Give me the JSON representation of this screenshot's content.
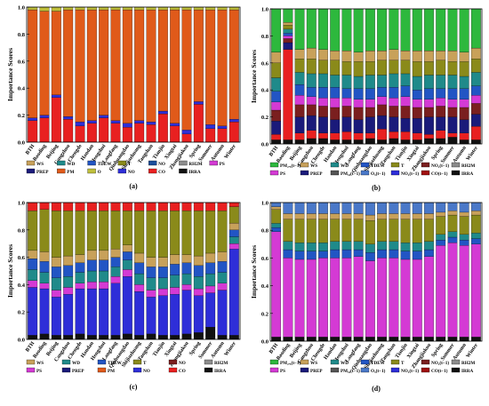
{
  "palette": {
    "PM25_lag": "#2db83d",
    "WS": "#c8a15a",
    "WD": "#1f8a8a",
    "TDEW": "#2255c4",
    "T": "#8a8a1a",
    "NO2_lag": "#7a1f1f",
    "RH2M": "#8c8c8c",
    "PS": "#d43ad4",
    "PREP": "#1a1a7a",
    "PM10": "#e05a1a",
    "O3_lag": "#4a78c8",
    "NO2": "#2e2ed8",
    "CO_lag": "#a01010",
    "IRRA": "#101010",
    "O3": "#bfbf3a",
    "NO": "#1b4e9b",
    "F": "#d8d820",
    "CO": "#e82020",
    "PM10_lag": "#555555"
  },
  "chart_data": [
    {
      "type": "bar",
      "panel": "(a)",
      "ylabel": "Importance Scores",
      "ylim": [
        0,
        1.0
      ],
      "yticks": [
        "0.0",
        "0.2",
        "0.4",
        "0.6",
        "0.8",
        "1.0"
      ],
      "categories": [
        "BTH",
        "Baoding",
        "Beijing",
        "Cangzhou",
        "Chengde",
        "Handan",
        "Hengshui",
        "Langfang",
        "Qinhuangdao",
        "Shijiazhuang",
        "Tangshan",
        "Tianjin",
        "Xingtai",
        "Zhangjiakou",
        "Spring",
        "Summer",
        "Autumn",
        "Winter"
      ],
      "series": [
        {
          "key": "CO",
          "values": [
            0.16,
            0.18,
            0.33,
            0.17,
            0.12,
            0.14,
            0.18,
            0.14,
            0.11,
            0.14,
            0.13,
            0.21,
            0.12,
            0.06,
            0.28,
            0.1,
            0.1,
            0.15
          ]
        },
        {
          "key": "NO2",
          "values": [
            0.02,
            0.02,
            0.02,
            0.02,
            0.03,
            0.02,
            0.02,
            0.02,
            0.03,
            0.02,
            0.02,
            0.02,
            0.02,
            0.03,
            0.02,
            0.03,
            0.02,
            0.02
          ]
        },
        {
          "key": "PM10",
          "values": [
            0.8,
            0.77,
            0.62,
            0.79,
            0.83,
            0.82,
            0.78,
            0.82,
            0.84,
            0.82,
            0.83,
            0.75,
            0.84,
            0.89,
            0.68,
            0.85,
            0.86,
            0.81
          ]
        },
        {
          "key": "O3",
          "values": [
            0.02,
            0.03,
            0.03,
            0.02,
            0.02,
            0.02,
            0.02,
            0.02,
            0.02,
            0.02,
            0.02,
            0.02,
            0.02,
            0.02,
            0.02,
            0.02,
            0.02,
            0.02
          ]
        }
      ],
      "legend": [
        {
          "label": "WS",
          "key": "WS"
        },
        {
          "label": "WD",
          "key": "WD"
        },
        {
          "label": "TDEW",
          "key": "TDEW"
        },
        {
          "label": "T",
          "key": "T"
        },
        {
          "label": "NO",
          "key": "NO"
        },
        {
          "label": "RH2M",
          "key": "RH2M"
        },
        {
          "label": "PS",
          "key": "PS"
        },
        {
          "label": "PREP",
          "key": "PREP"
        },
        {
          "label": "PM",
          "key": "PM10"
        },
        {
          "label": "O",
          "key": "O3"
        },
        {
          "label": "NO",
          "key": "NO2"
        },
        {
          "label": "CO",
          "key": "CO"
        },
        {
          "label": "IRRA",
          "key": "IRRA"
        }
      ]
    },
    {
      "type": "bar",
      "panel": "(b)",
      "ylabel": "Importance Scores",
      "ylim": [
        0,
        1.0
      ],
      "yticks": [
        "0.0",
        "0.2",
        "0.4",
        "0.6",
        "0.8",
        "1.0"
      ],
      "categories": [
        "BTH",
        "Baoding",
        "Beijing",
        "Cangzhou",
        "Chengde",
        "Handan",
        "Hengshui",
        "Langfang",
        "Qinhuangdao",
        "Shijiazhuang",
        "Tangshan",
        "Tianjin",
        "Xingtai",
        "Zhangjiakou",
        "Spring",
        "Summer",
        "Autumn",
        "Winter"
      ],
      "series": [
        {
          "key": "IRRA",
          "values": [
            0.03,
            0.03,
            0.03,
            0.04,
            0.04,
            0.03,
            0.03,
            0.03,
            0.04,
            0.03,
            0.04,
            0.03,
            0.03,
            0.04,
            0.04,
            0.05,
            0.03,
            0.03
          ]
        },
        {
          "key": "CO",
          "values": [
            0.04,
            0.67,
            0.05,
            0.06,
            0.04,
            0.05,
            0.06,
            0.05,
            0.04,
            0.08,
            0.05,
            0.06,
            0.05,
            0.03,
            0.06,
            0.03,
            0.05,
            0.1
          ]
        },
        {
          "key": "PREP",
          "values": [
            0.1,
            0.05,
            0.12,
            0.11,
            0.12,
            0.1,
            0.11,
            0.1,
            0.12,
            0.1,
            0.11,
            0.1,
            0.11,
            0.13,
            0.1,
            0.12,
            0.1,
            0.09
          ]
        },
        {
          "key": "NO2_lag",
          "values": [
            0.08,
            0.03,
            0.09,
            0.08,
            0.08,
            0.09,
            0.08,
            0.09,
            0.07,
            0.08,
            0.08,
            0.09,
            0.08,
            0.07,
            0.08,
            0.07,
            0.09,
            0.08
          ]
        },
        {
          "key": "PS",
          "values": [
            0.06,
            0.02,
            0.07,
            0.06,
            0.06,
            0.07,
            0.06,
            0.06,
            0.06,
            0.06,
            0.06,
            0.07,
            0.06,
            0.06,
            0.06,
            0.06,
            0.06,
            0.06
          ]
        },
        {
          "key": "TDEW",
          "values": [
            0.08,
            0.02,
            0.08,
            0.07,
            0.08,
            0.08,
            0.07,
            0.08,
            0.08,
            0.07,
            0.08,
            0.08,
            0.07,
            0.08,
            0.07,
            0.08,
            0.08,
            0.07
          ]
        },
        {
          "key": "WD",
          "values": [
            0.1,
            0.03,
            0.09,
            0.1,
            0.1,
            0.09,
            0.1,
            0.09,
            0.1,
            0.09,
            0.1,
            0.09,
            0.1,
            0.1,
            0.1,
            0.1,
            0.09,
            0.1
          ]
        },
        {
          "key": "T",
          "values": [
            0.11,
            0.03,
            0.1,
            0.11,
            0.1,
            0.11,
            0.1,
            0.11,
            0.1,
            0.11,
            0.1,
            0.1,
            0.11,
            0.1,
            0.11,
            0.1,
            0.11,
            0.1
          ]
        },
        {
          "key": "WS",
          "values": [
            0.08,
            0.02,
            0.07,
            0.08,
            0.08,
            0.07,
            0.08,
            0.07,
            0.08,
            0.07,
            0.08,
            0.07,
            0.08,
            0.08,
            0.07,
            0.08,
            0.07,
            0.08
          ]
        },
        {
          "key": "PM25_lag",
          "values": [
            0.32,
            0.1,
            0.3,
            0.29,
            0.3,
            0.31,
            0.31,
            0.32,
            0.31,
            0.31,
            0.3,
            0.31,
            0.31,
            0.31,
            0.31,
            0.31,
            0.32,
            0.29
          ]
        }
      ],
      "legend": [
        {
          "label": "PM₂.₅(t−1)",
          "key": "PM25_lag"
        },
        {
          "label": "WS",
          "key": "WS"
        },
        {
          "label": "WD",
          "key": "WD"
        },
        {
          "label": "TDEW",
          "key": "TDEW"
        },
        {
          "label": "T",
          "key": "T"
        },
        {
          "label": "NO₂(t−1)",
          "key": "NO2_lag"
        },
        {
          "label": "RH2M",
          "key": "RH2M"
        },
        {
          "label": "PS",
          "key": "PS"
        },
        {
          "label": "PREP",
          "key": "PREP"
        },
        {
          "label": "PM₁₀(t−1)",
          "key": "PM10_lag"
        },
        {
          "label": "O₃(t−1)",
          "key": "O3_lag"
        },
        {
          "label": "NO₂(t−1)",
          "key": "NO2"
        },
        {
          "label": "CO(t−1)",
          "key": "CO_lag"
        },
        {
          "label": "IRRA",
          "key": "IRRA"
        }
      ]
    },
    {
      "type": "bar",
      "panel": "(c)",
      "ylabel": "Importance Scores",
      "ylim": [
        0,
        1.0
      ],
      "yticks": [
        "0.0",
        "0.2",
        "0.4",
        "0.6",
        "0.8",
        "1.0"
      ],
      "categories": [
        "BTH",
        "Baoding",
        "Beijing",
        "Cangzhou",
        "Chengde",
        "Handan",
        "Hengshui",
        "Langfang",
        "Qinhuangdao",
        "Shijiazhuang",
        "Tangshan",
        "Tianjin",
        "Xingtai",
        "Zhangjiakou",
        "Spring",
        "Summer",
        "Autumn",
        "Winter"
      ],
      "series": [
        {
          "key": "IRRA",
          "values": [
            0.03,
            0.04,
            0.03,
            0.03,
            0.04,
            0.03,
            0.03,
            0.03,
            0.04,
            0.03,
            0.04,
            0.03,
            0.03,
            0.04,
            0.05,
            0.09,
            0.03,
            0.03
          ]
        },
        {
          "key": "NO2",
          "values": [
            0.35,
            0.33,
            0.28,
            0.3,
            0.33,
            0.34,
            0.34,
            0.38,
            0.42,
            0.32,
            0.27,
            0.29,
            0.3,
            0.32,
            0.27,
            0.25,
            0.33,
            0.63
          ]
        },
        {
          "key": "PS",
          "values": [
            0.05,
            0.04,
            0.05,
            0.05,
            0.04,
            0.05,
            0.05,
            0.05,
            0.05,
            0.05,
            0.05,
            0.05,
            0.05,
            0.04,
            0.05,
            0.05,
            0.05,
            0.04
          ]
        },
        {
          "key": "WD",
          "values": [
            0.08,
            0.08,
            0.09,
            0.08,
            0.08,
            0.08,
            0.08,
            0.07,
            0.07,
            0.08,
            0.09,
            0.08,
            0.09,
            0.08,
            0.09,
            0.09,
            0.08,
            0.05
          ]
        },
        {
          "key": "TDEW",
          "values": [
            0.08,
            0.08,
            0.08,
            0.08,
            0.07,
            0.08,
            0.08,
            0.07,
            0.06,
            0.08,
            0.08,
            0.08,
            0.08,
            0.08,
            0.08,
            0.08,
            0.08,
            0.05
          ]
        },
        {
          "key": "WS",
          "values": [
            0.06,
            0.07,
            0.07,
            0.07,
            0.06,
            0.07,
            0.07,
            0.06,
            0.05,
            0.07,
            0.07,
            0.07,
            0.07,
            0.06,
            0.07,
            0.07,
            0.07,
            0.05
          ]
        },
        {
          "key": "T",
          "values": [
            0.29,
            0.31,
            0.34,
            0.33,
            0.32,
            0.29,
            0.29,
            0.28,
            0.25,
            0.31,
            0.34,
            0.34,
            0.32,
            0.32,
            0.33,
            0.31,
            0.3,
            0.12
          ]
        },
        {
          "key": "CO",
          "values": [
            0.06,
            0.05,
            0.06,
            0.06,
            0.06,
            0.06,
            0.06,
            0.06,
            0.06,
            0.06,
            0.06,
            0.06,
            0.06,
            0.06,
            0.06,
            0.06,
            0.06,
            0.03
          ]
        }
      ],
      "legend": [
        {
          "label": "WS",
          "key": "WS"
        },
        {
          "label": "WD",
          "key": "WD"
        },
        {
          "label": "TDEW",
          "key": "TDEW"
        },
        {
          "label": "T",
          "key": "T"
        },
        {
          "label": "NO",
          "key": "NO2_lag"
        },
        {
          "label": "RH2M",
          "key": "RH2M"
        },
        {
          "label": "PS",
          "key": "PS"
        },
        {
          "label": "PREP",
          "key": "PREP"
        },
        {
          "label": "PM",
          "key": "PM10"
        },
        {
          "label": "NO",
          "key": "NO2"
        },
        {
          "label": "CO",
          "key": "CO"
        },
        {
          "label": "IRRA",
          "key": "IRRA"
        }
      ]
    },
    {
      "type": "bar",
      "panel": "(d)",
      "ylabel": "Importance Scores",
      "ylim": [
        0,
        1.0
      ],
      "yticks": [
        "0.0",
        "0.2",
        "0.4",
        "0.6",
        "0.8",
        "1.0"
      ],
      "categories": [
        "BTH",
        "Baoding",
        "Beijing",
        "Cangzhou",
        "Chengde",
        "Handan",
        "Hengshui",
        "Langfang",
        "Qinhuangdao",
        "Shijiazhuang",
        "Tangshan",
        "Tianjin",
        "Xingtai",
        "Zhangjiakou",
        "Spring",
        "Summer",
        "Autumn",
        "Winter"
      ],
      "series": [
        {
          "key": "IRRA",
          "values": [
            0.03,
            0.03,
            0.03,
            0.03,
            0.03,
            0.03,
            0.03,
            0.03,
            0.03,
            0.03,
            0.03,
            0.03,
            0.03,
            0.03,
            0.03,
            0.03,
            0.03,
            0.03
          ]
        },
        {
          "key": "PS",
          "values": [
            0.76,
            0.57,
            0.56,
            0.56,
            0.57,
            0.57,
            0.57,
            0.58,
            0.55,
            0.57,
            0.57,
            0.56,
            0.56,
            0.58,
            0.66,
            0.68,
            0.66,
            0.67
          ]
        },
        {
          "key": "TDEW",
          "values": [
            0.03,
            0.06,
            0.06,
            0.06,
            0.05,
            0.06,
            0.06,
            0.05,
            0.06,
            0.06,
            0.06,
            0.06,
            0.06,
            0.05,
            0.04,
            0.04,
            0.04,
            0.04
          ]
        },
        {
          "key": "WD",
          "values": [
            0.03,
            0.06,
            0.06,
            0.06,
            0.06,
            0.06,
            0.06,
            0.06,
            0.06,
            0.06,
            0.06,
            0.06,
            0.06,
            0.06,
            0.04,
            0.04,
            0.04,
            0.04
          ]
        },
        {
          "key": "T",
          "values": [
            0.1,
            0.16,
            0.17,
            0.17,
            0.17,
            0.16,
            0.16,
            0.16,
            0.17,
            0.16,
            0.16,
            0.17,
            0.17,
            0.16,
            0.13,
            0.12,
            0.13,
            0.13
          ]
        },
        {
          "key": "WS",
          "values": [
            0.02,
            0.04,
            0.04,
            0.04,
            0.04,
            0.04,
            0.04,
            0.04,
            0.04,
            0.04,
            0.04,
            0.04,
            0.04,
            0.04,
            0.03,
            0.03,
            0.03,
            0.03
          ]
        },
        {
          "key": "O3_lag",
          "values": [
            0.03,
            0.08,
            0.08,
            0.08,
            0.08,
            0.08,
            0.08,
            0.08,
            0.09,
            0.08,
            0.08,
            0.08,
            0.08,
            0.08,
            0.07,
            0.06,
            0.07,
            0.06
          ]
        }
      ],
      "legend": [
        {
          "label": "PM₂.₅(t−1)",
          "key": "PM25_lag"
        },
        {
          "label": "WS",
          "key": "WS"
        },
        {
          "label": "WD",
          "key": "WD"
        },
        {
          "label": "TDEW",
          "key": "TDEW"
        },
        {
          "label": "T",
          "key": "T"
        },
        {
          "label": "NO₂(t−1)",
          "key": "NO2_lag"
        },
        {
          "label": "RH2M",
          "key": "RH2M"
        },
        {
          "label": "PS",
          "key": "PS"
        },
        {
          "label": "PREP",
          "key": "PREP"
        },
        {
          "label": "PM₁₀(t−1)",
          "key": "PM10_lag"
        },
        {
          "label": "O₃(t−1)",
          "key": "O3_lag"
        },
        {
          "label": "NO₂(t−1)",
          "key": "NO2"
        },
        {
          "label": "CO(t−1)",
          "key": "CO_lag"
        },
        {
          "label": "IRRA",
          "key": "IRRA"
        }
      ]
    }
  ]
}
